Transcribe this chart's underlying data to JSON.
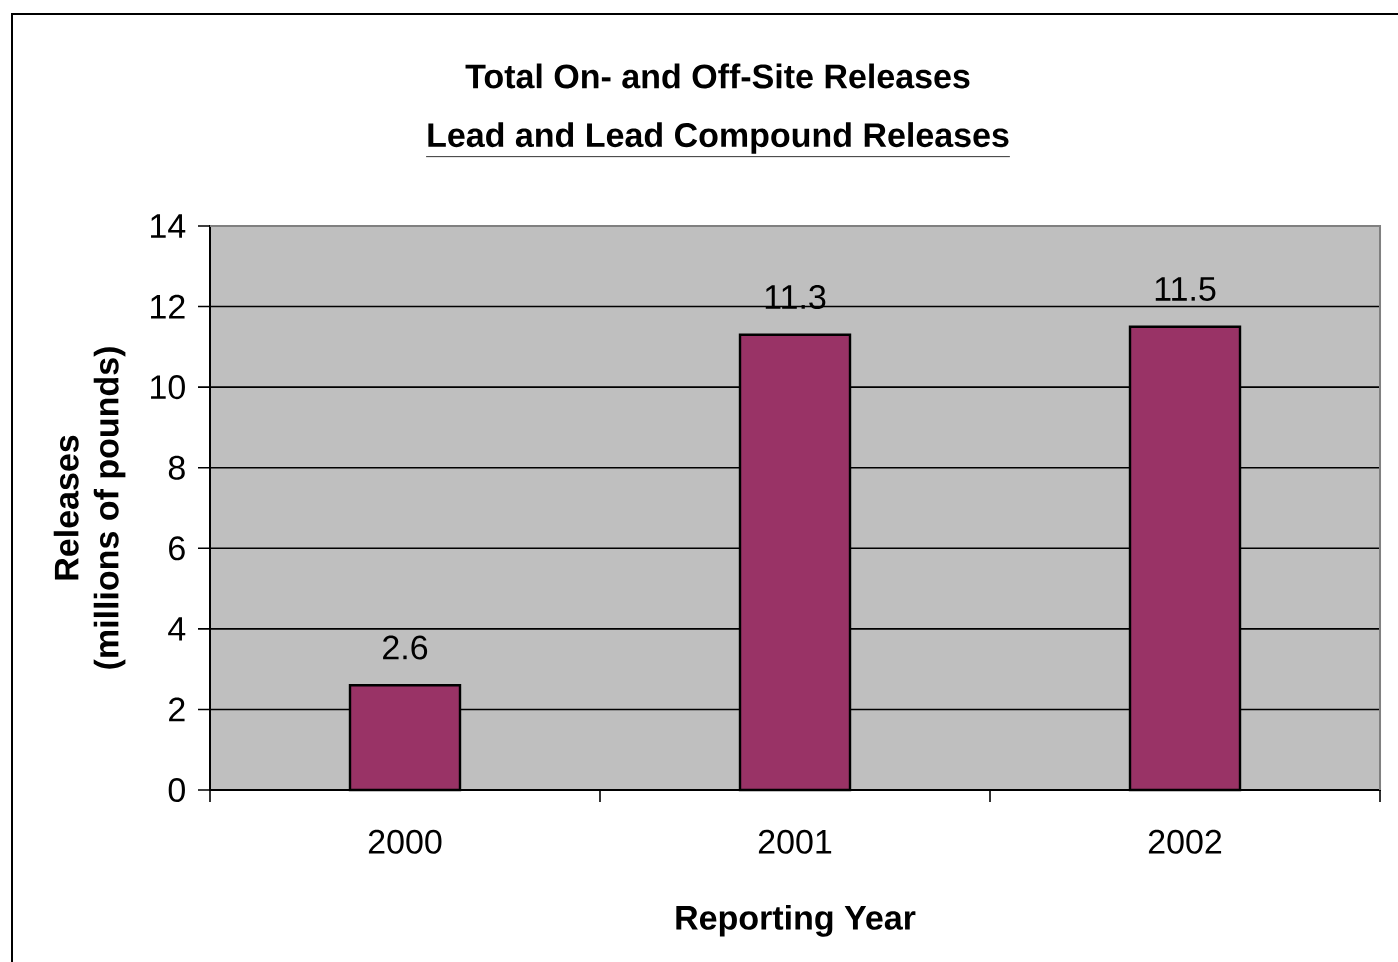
{
  "chart_data": {
    "type": "bar",
    "title": "Total On- and Off-Site Releases",
    "subtitle": "Lead and Lead Compound Releases",
    "xlabel": "Reporting Year",
    "ylabel": "Releases (millions of pounds)",
    "categories": [
      "2000",
      "2001",
      "2002"
    ],
    "values": [
      2.6,
      11.3,
      11.5
    ],
    "color": "#993366",
    "ylim": [
      0,
      14
    ],
    "yticks": [
      0,
      2,
      4,
      6,
      8,
      10,
      12,
      14
    ],
    "grid": "y",
    "data_labels": true
  }
}
